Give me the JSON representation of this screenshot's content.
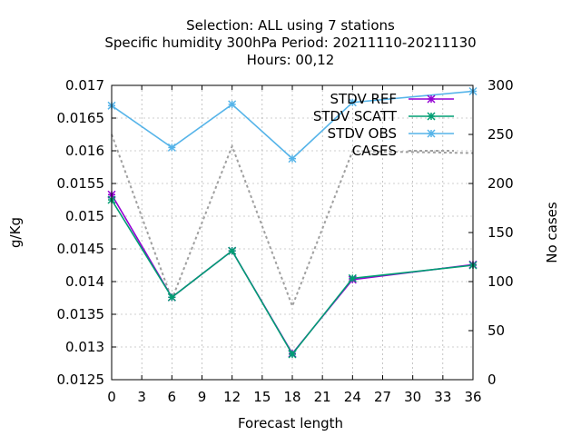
{
  "title_lines": [
    "Selection: ALL using     7 stations",
    "Specific humidity 300hPa   Period: 20211110-20211130",
    "Hours:  00,12"
  ],
  "chart_data": {
    "type": "line",
    "xlabel": "Forecast length",
    "ylabel": "g/Kg",
    "y2label": "No cases",
    "xlim": [
      0,
      36
    ],
    "ylim": [
      0.0125,
      0.017
    ],
    "y2lim": [
      0,
      300
    ],
    "grid": true,
    "legend_position": "top-right",
    "x_ticks": [
      "0",
      "3",
      "6",
      "9",
      "12",
      "15",
      "18",
      "21",
      "24",
      "27",
      "30",
      "33",
      "36"
    ],
    "y_ticks": [
      "0.0125",
      "0.013",
      "0.0135",
      "0.014",
      "0.0145",
      "0.015",
      "0.0155",
      "0.016",
      "0.0165",
      "0.017"
    ],
    "y2_ticks": [
      "0",
      "50",
      "100",
      "150",
      "200",
      "250",
      "300"
    ],
    "x": [
      0,
      6,
      12,
      18,
      24,
      36
    ],
    "series": [
      {
        "name": "STDV REF",
        "color": "#9400d3",
        "marker": "star",
        "axis": "y",
        "values": [
          0.01533,
          0.01376,
          0.01447,
          0.0129,
          0.01403,
          0.01426
        ]
      },
      {
        "name": "STDV SCATT",
        "color": "#009e73",
        "marker": "star",
        "axis": "y",
        "values": [
          0.01525,
          0.01376,
          0.01447,
          0.01289,
          0.01405,
          0.01425
        ]
      },
      {
        "name": "STDV OBS",
        "color": "#56b4e9",
        "marker": "star",
        "axis": "y",
        "values": [
          0.01669,
          0.01605,
          0.01671,
          0.01588,
          0.01674,
          0.01691
        ]
      },
      {
        "name": "CASES",
        "color": "#a0a0a0",
        "marker": "none",
        "dashed": true,
        "axis": "y2",
        "values": [
          250,
          82,
          238,
          75,
          233,
          231
        ]
      }
    ]
  }
}
